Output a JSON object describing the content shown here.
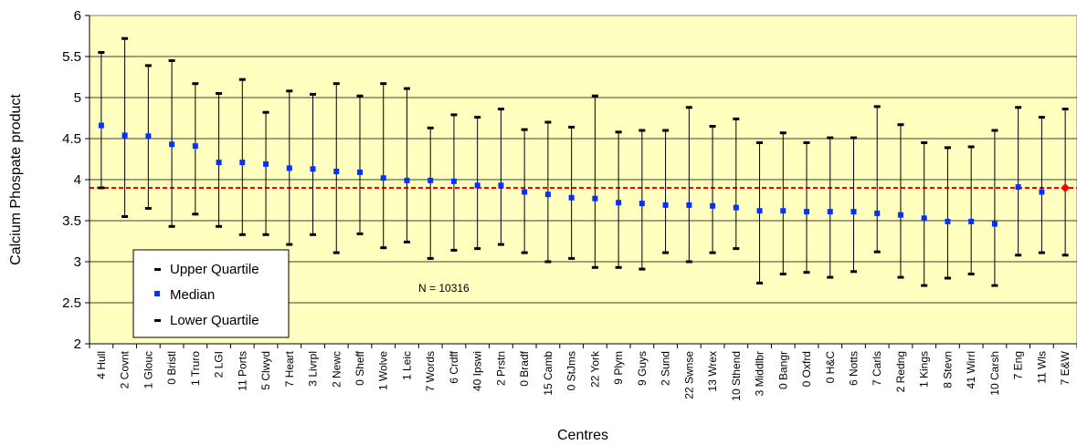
{
  "chart_data": {
    "type": "scatter",
    "xlabel": "Centres",
    "ylabel": "Calcium Phospate product",
    "ylim": [
      2,
      6
    ],
    "yticks": [
      "2",
      "2.5",
      "3",
      "3.5",
      "4",
      "4.5",
      "5",
      "5.5",
      "6"
    ],
    "grid": "horizontal",
    "background": "#FFFFC0",
    "categories": [
      "4 Hull",
      "2 Covnt",
      "1 Glouc",
      "0 Bristl",
      "1 Truro",
      "2 LGI",
      "11 Ports",
      "5 Clwyd",
      "7 Heart",
      "3 Livrpl",
      "2 Newc",
      "0 Sheff",
      "1 Wolve",
      "1 Leic",
      "7 Words",
      "6 Crdff",
      "40 Ipswi",
      "2 Prstn",
      "0 Bradf",
      "15 Camb",
      "0 StJms",
      "22 York",
      "9 Plym",
      "9 Guys",
      "2 Sund",
      "22 Swnse",
      "13 Wrex",
      "10 Sthend",
      "3 Middlbr",
      "0 Bangr",
      "0 Oxfrd",
      "0 H&C",
      "6 Notts",
      "7 Carls",
      "2 Redng",
      "1 Kings",
      "8 Stevn",
      "41 Wirrl",
      "10 Carsh",
      "7 Eng",
      "11 Wls",
      "7 E&W"
    ],
    "series": [
      {
        "name": "Upper Quartile",
        "color": "#000000",
        "values": [
          5.55,
          5.72,
          5.39,
          5.45,
          5.17,
          5.05,
          5.22,
          4.82,
          5.08,
          5.04,
          5.17,
          5.02,
          5.17,
          5.11,
          4.63,
          4.79,
          4.76,
          4.86,
          4.61,
          4.7,
          4.64,
          5.02,
          4.58,
          4.6,
          4.6,
          4.88,
          4.65,
          4.74,
          4.45,
          4.57,
          4.45,
          4.51,
          4.51,
          4.89,
          4.67,
          4.45,
          4.39,
          4.4,
          4.6,
          4.88,
          4.76,
          4.86
        ]
      },
      {
        "name": "Median",
        "color": "#0033FF",
        "values": [
          4.66,
          4.54,
          4.53,
          4.43,
          4.41,
          4.21,
          4.21,
          4.19,
          4.14,
          4.13,
          4.1,
          4.09,
          4.02,
          3.99,
          3.99,
          3.98,
          3.93,
          3.93,
          3.85,
          3.82,
          3.78,
          3.77,
          3.72,
          3.71,
          3.69,
          3.69,
          3.68,
          3.66,
          3.62,
          3.62,
          3.61,
          3.61,
          3.61,
          3.59,
          3.57,
          3.53,
          3.49,
          3.49,
          3.46,
          3.91,
          3.85,
          3.9
        ]
      },
      {
        "name": "Lower Quartile",
        "color": "#000000",
        "values": [
          3.9,
          3.55,
          3.65,
          3.43,
          3.58,
          3.43,
          3.33,
          3.33,
          3.21,
          3.33,
          3.11,
          3.34,
          3.17,
          3.24,
          3.04,
          3.14,
          3.16,
          3.21,
          3.11,
          3.0,
          3.04,
          2.93,
          2.93,
          2.91,
          3.11,
          3.0,
          3.11,
          3.16,
          2.74,
          2.85,
          2.87,
          2.81,
          2.88,
          3.12,
          2.81,
          2.71,
          2.8,
          2.85,
          2.71,
          3.08,
          3.11,
          3.08
        ]
      }
    ],
    "reference_line": {
      "value": 3.9,
      "color": "#FF0000",
      "style": "dashed"
    },
    "highlight": {
      "category": "7 E&W",
      "color": "#FF0000"
    },
    "annotation": "N = 10316",
    "legend": {
      "position": "bottom-left",
      "items": [
        "Upper Quartile",
        "Median",
        "Lower Quartile"
      ]
    }
  }
}
